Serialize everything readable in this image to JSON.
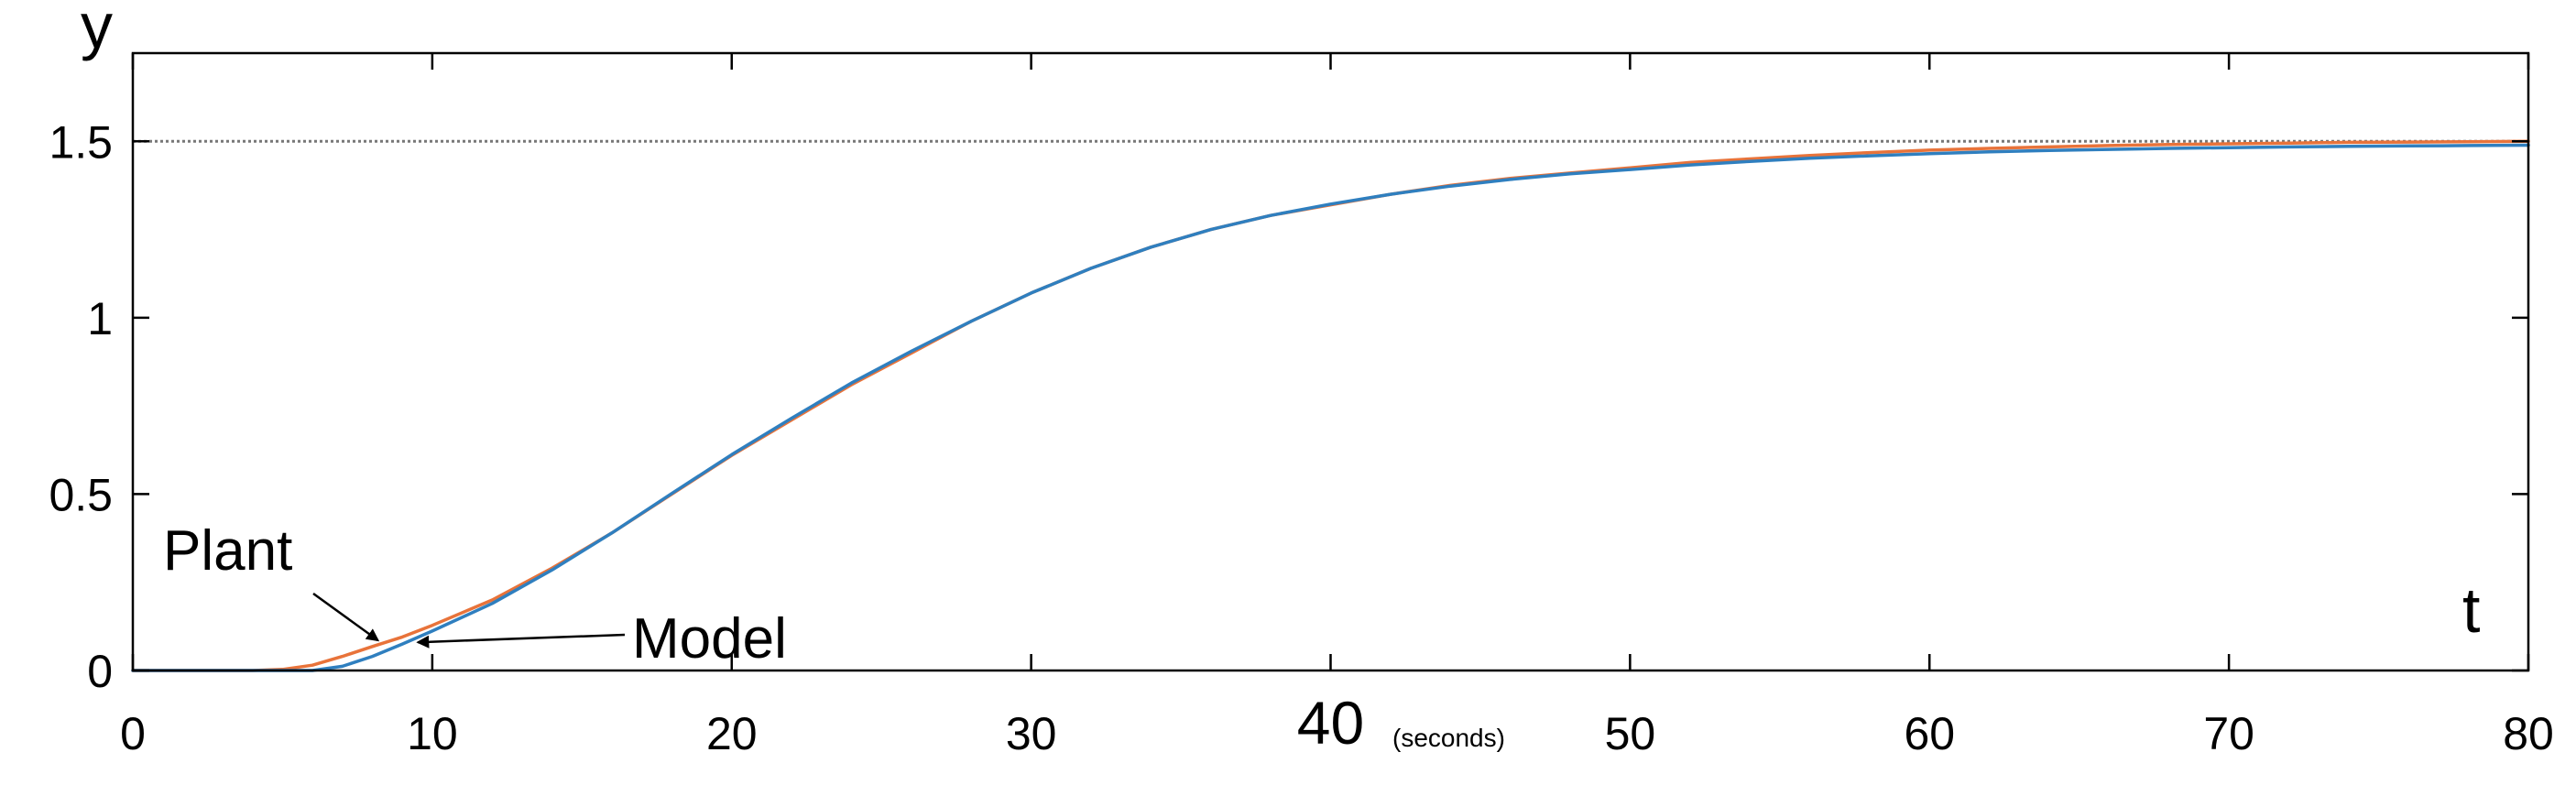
{
  "chart_data": {
    "type": "line",
    "title": "",
    "xlabel": "t",
    "xlabel_unit": "(seconds)",
    "ylabel": "y",
    "xlim": [
      0,
      80
    ],
    "ylim": [
      0,
      1.75
    ],
    "xticks": [
      0,
      10,
      20,
      30,
      40,
      50,
      60,
      70,
      80
    ],
    "xtick_labels": [
      "0",
      "10",
      "20",
      "30",
      "40",
      "50",
      "60",
      "70",
      "80"
    ],
    "yticks": [
      0,
      0.5,
      1,
      1.5
    ],
    "ytick_labels": [
      "0",
      "0.5",
      "1",
      "1.5"
    ],
    "grid": false,
    "reference_line": {
      "y": 1.5,
      "style": "dotted",
      "color": "#777777"
    },
    "series": [
      {
        "name": "Plant",
        "color": "#e8733a",
        "x": [
          0,
          2,
          4,
          5,
          6,
          7,
          8,
          9,
          10,
          12,
          14,
          16,
          18,
          20,
          22,
          24,
          26,
          28,
          30,
          32,
          34,
          36,
          38,
          40,
          42,
          44,
          46,
          48,
          50,
          52,
          54,
          56,
          58,
          60,
          62,
          64,
          66,
          68,
          70,
          72,
          74,
          76,
          78,
          80
        ],
        "y": [
          0,
          0,
          0,
          0.003,
          0.015,
          0.04,
          0.068,
          0.095,
          0.128,
          0.2,
          0.29,
          0.39,
          0.5,
          0.61,
          0.71,
          0.81,
          0.9,
          0.99,
          1.07,
          1.14,
          1.2,
          1.25,
          1.29,
          1.32,
          1.35,
          1.375,
          1.395,
          1.41,
          1.425,
          1.44,
          1.45,
          1.46,
          1.468,
          1.475,
          1.48,
          1.484,
          1.488,
          1.491,
          1.493,
          1.495,
          1.497,
          1.498,
          1.499,
          1.5
        ]
      },
      {
        "name": "Model",
        "color": "#2f7fbf",
        "x": [
          0,
          2,
          4,
          5,
          6,
          7,
          8,
          9,
          10,
          12,
          14,
          16,
          18,
          20,
          22,
          24,
          26,
          28,
          30,
          32,
          34,
          36,
          38,
          40,
          42,
          44,
          46,
          48,
          50,
          52,
          54,
          56,
          58,
          60,
          62,
          64,
          66,
          68,
          70,
          72,
          74,
          76,
          78,
          80
        ],
        "y": [
          0,
          0,
          0,
          0,
          0,
          0.012,
          0.04,
          0.075,
          0.112,
          0.19,
          0.285,
          0.39,
          0.502,
          0.612,
          0.715,
          0.815,
          0.905,
          0.99,
          1.07,
          1.14,
          1.2,
          1.25,
          1.29,
          1.322,
          1.35,
          1.373,
          1.392,
          1.408,
          1.42,
          1.433,
          1.443,
          1.452,
          1.459,
          1.465,
          1.47,
          1.474,
          1.477,
          1.48,
          1.482,
          1.484,
          1.486,
          1.487,
          1.488,
          1.489
        ]
      }
    ],
    "annotations": [
      {
        "text": "Plant",
        "x": 8,
        "y": 0.07
      },
      {
        "text": "Model",
        "x": 9.4,
        "y": 0.08
      }
    ]
  }
}
